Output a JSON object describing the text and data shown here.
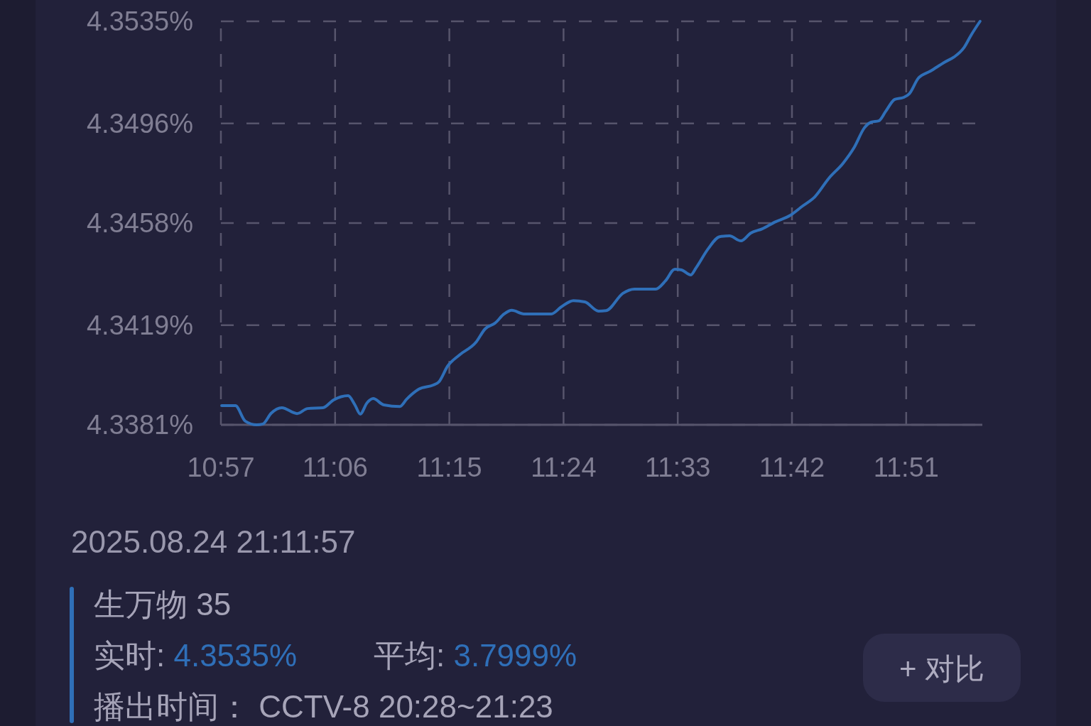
{
  "chart_data": {
    "type": "line",
    "xlim": [
      10.95,
      11.95
    ],
    "xticks": [
      {
        "value": 10.95,
        "label": "10:57"
      },
      {
        "value": 11.1,
        "label": "11:06"
      },
      {
        "value": 11.25,
        "label": "11:15"
      },
      {
        "value": 11.4,
        "label": "11:24"
      },
      {
        "value": 11.55,
        "label": "11:33"
      },
      {
        "value": 11.7,
        "label": "11:42"
      },
      {
        "value": 11.85,
        "label": "11:51"
      }
    ],
    "ylim": [
      4.3381,
      4.3535
    ],
    "yticks": [
      {
        "value": 4.3381,
        "label": "4.3381%"
      },
      {
        "value": 4.3419,
        "label": "4.3419%"
      },
      {
        "value": 4.3458,
        "label": "4.3458%"
      },
      {
        "value": 4.3496,
        "label": "4.3496%"
      },
      {
        "value": 4.3535,
        "label": "4.3535%"
      }
    ],
    "grid": true,
    "legend": "bottom",
    "x": [
      10.951,
      10.969,
      10.982,
      10.997,
      11.005,
      11.016,
      11.03,
      11.05,
      11.064,
      11.084,
      11.098,
      11.117,
      11.126,
      11.133,
      11.142,
      11.15,
      11.164,
      11.185,
      11.194,
      11.21,
      11.229,
      11.236,
      11.248,
      11.263,
      11.285,
      11.297,
      11.31,
      11.322,
      11.332,
      11.348,
      11.384,
      11.397,
      11.413,
      11.428,
      11.446,
      11.456,
      11.478,
      11.493,
      11.521,
      11.534,
      11.546,
      11.555,
      11.567,
      11.574,
      11.59,
      11.605,
      11.618,
      11.633,
      11.646,
      11.661,
      11.677,
      11.698,
      11.714,
      11.73,
      11.749,
      11.767,
      11.782,
      11.795,
      11.804,
      11.814,
      11.823,
      11.835,
      11.847,
      11.854,
      11.866,
      11.882,
      11.901,
      11.913,
      11.926,
      11.935,
      11.947
    ],
    "series": [
      {
        "name": "生万物 35",
        "color": "#2f6fb8",
        "values": [
          4.33883,
          4.33883,
          4.33824,
          4.3381,
          4.33813,
          4.33854,
          4.33875,
          4.33853,
          4.33872,
          4.33875,
          4.33905,
          4.33921,
          4.33886,
          4.33851,
          4.33894,
          4.3391,
          4.33886,
          4.3388,
          4.33908,
          4.33946,
          4.33962,
          4.33973,
          4.34035,
          4.34076,
          4.34125,
          4.34176,
          4.34198,
          4.34233,
          4.34247,
          4.34233,
          4.34233,
          4.3426,
          4.34284,
          4.34279,
          4.34244,
          4.34246,
          4.34312,
          4.34328,
          4.34328,
          4.3436,
          4.34404,
          4.34401,
          4.34382,
          4.34409,
          4.34482,
          4.34528,
          4.34531,
          4.34512,
          4.34542,
          4.34558,
          4.34583,
          4.3461,
          4.34645,
          4.3468,
          4.34753,
          4.34808,
          4.3487,
          4.34943,
          4.34965,
          4.3497,
          4.35006,
          4.35052,
          4.3506,
          4.35073,
          4.35133,
          4.3516,
          4.35195,
          4.35214,
          4.3525,
          4.35296,
          4.3535
        ]
      }
    ],
    "annotations": [
      "2025.08.24 21:11:57",
      "实时: 4.3535%",
      "平均: 3.7999%",
      "播出时间： CCTV-8 20:28~21:23",
      "+ 对比"
    ]
  }
}
